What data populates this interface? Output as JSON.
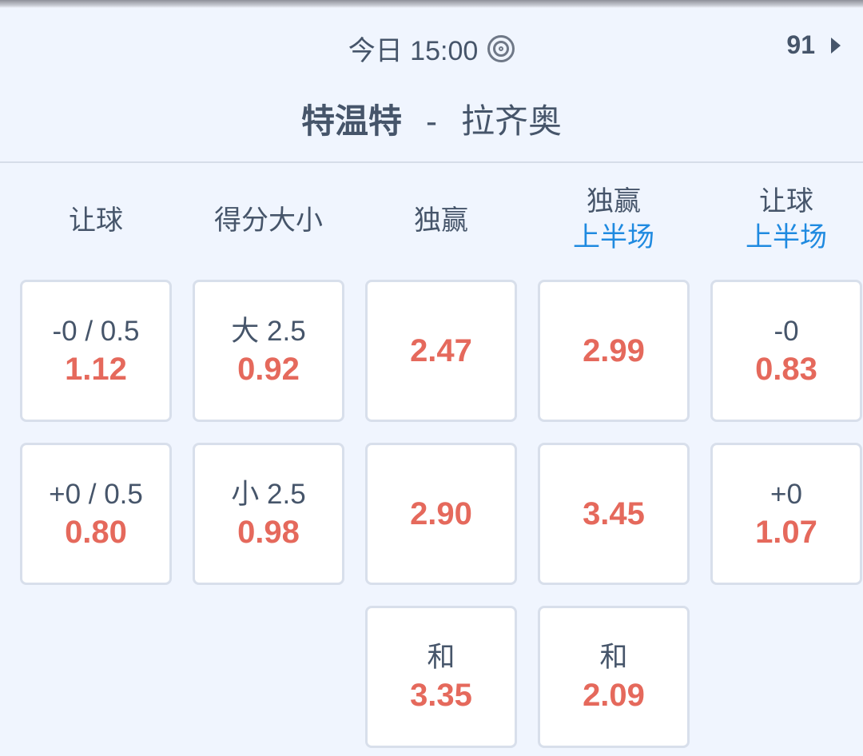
{
  "header": {
    "time": "今日 15:00",
    "live_icon": "target-icon",
    "count": "91",
    "home": "特温特",
    "separator": "-",
    "away": "拉齐奥"
  },
  "columns": [
    {
      "title": "让球",
      "sub": ""
    },
    {
      "title": "得分大小",
      "sub": ""
    },
    {
      "title": "独赢",
      "sub": ""
    },
    {
      "title": "独赢",
      "sub": "上半场"
    },
    {
      "title": "让球",
      "sub": "上半场"
    }
  ],
  "cells": [
    [
      {
        "label": "-0 / 0.5",
        "odd": "1.12"
      },
      {
        "label": "+0 / 0.5",
        "odd": "0.80"
      }
    ],
    [
      {
        "label": "大 2.5",
        "odd": "0.92"
      },
      {
        "label": "小 2.5",
        "odd": "0.98"
      }
    ],
    [
      {
        "label": "",
        "odd": "2.47"
      },
      {
        "label": "",
        "odd": "2.90"
      },
      {
        "label": "和",
        "odd": "3.35"
      }
    ],
    [
      {
        "label": "",
        "odd": "2.99"
      },
      {
        "label": "",
        "odd": "3.45"
      },
      {
        "label": "和",
        "odd": "2.09"
      }
    ],
    [
      {
        "label": "-0",
        "odd": "0.83"
      },
      {
        "label": "+0",
        "odd": "1.07"
      }
    ]
  ],
  "colors": {
    "odds": "#e5695c",
    "subtitle": "#1f8ae0",
    "text": "#46556a"
  }
}
